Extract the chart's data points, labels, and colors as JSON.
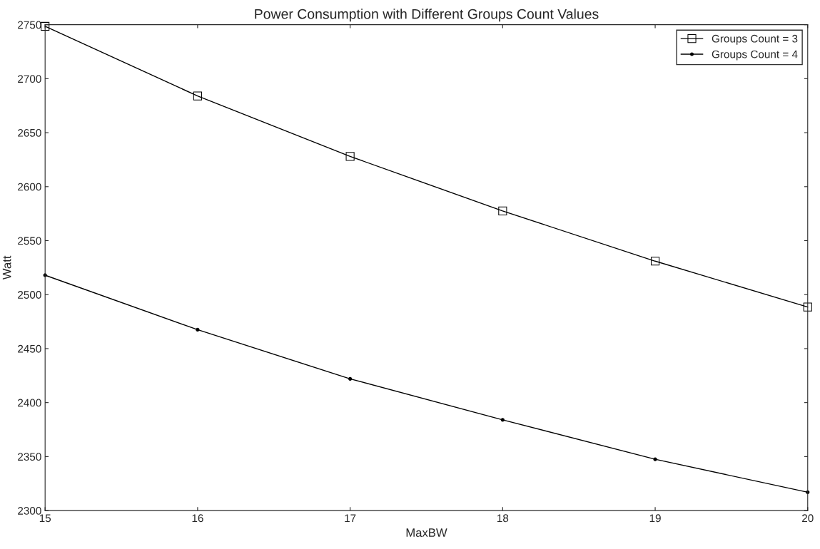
{
  "chart_data": {
    "type": "line",
    "title": "Power Consumption with Different Groups Count Values",
    "xlabel": "MaxBW",
    "ylabel": "Watt",
    "x": [
      15,
      16,
      17,
      18,
      19,
      20
    ],
    "series": [
      {
        "name": "Groups Count = 3",
        "color": "#000000",
        "marker": "square",
        "values": [
          2748.5,
          2684,
          2628,
          2577.5,
          2531,
          2488.5
        ]
      },
      {
        "name": "Groups Count = 4",
        "color": "#000000",
        "marker": "circle",
        "values": [
          2518,
          2467.5,
          2422,
          2384,
          2347.5,
          2317
        ]
      }
    ],
    "xlim": [
      15,
      20
    ],
    "xticks": [
      15,
      16,
      17,
      18,
      19,
      20
    ],
    "ylim": [
      2300,
      2750
    ],
    "yticks": [
      2300,
      2350,
      2400,
      2450,
      2500,
      2550,
      2600,
      2650,
      2700,
      2750
    ],
    "grid": false,
    "legend": "top right",
    "line_style": "solid"
  }
}
